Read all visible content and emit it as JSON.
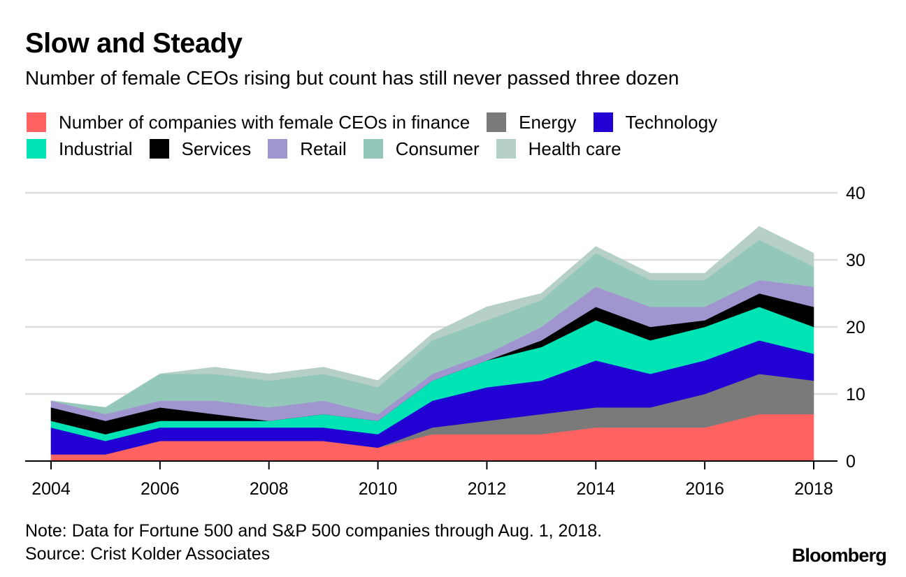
{
  "header": {
    "title": "Slow and Steady",
    "subtitle": "Number of female CEOs rising but count has still never passed three dozen"
  },
  "legend": {
    "row1": [
      {
        "label": "Number of companies with female CEOs in finance",
        "color": "#ff6361"
      },
      {
        "label": "Energy",
        "color": "#7a7a7a"
      },
      {
        "label": "Technology",
        "color": "#2200d4"
      }
    ],
    "row2": [
      {
        "label": "Industrial",
        "color": "#00e3b4"
      },
      {
        "label": "Services",
        "color": "#000000"
      },
      {
        "label": "Retail",
        "color": "#a195cf"
      },
      {
        "label": "Consumer",
        "color": "#93c7ba"
      },
      {
        "label": "Health care",
        "color": "#b6d0c7"
      }
    ]
  },
  "footer": {
    "note": "Note: Data for Fortune 500 and S&P 500 companies through Aug. 1, 2018.",
    "source": "Source: Crist Kolder Associates",
    "brand": "Bloomberg"
  },
  "chart_data": {
    "type": "area",
    "stacked": true,
    "title": "Slow and Steady",
    "subtitle": "Number of female CEOs rising but count has still never passed three dozen",
    "xlabel": "",
    "ylabel": "",
    "x": [
      2004,
      2005,
      2006,
      2007,
      2008,
      2009,
      2010,
      2011,
      2012,
      2013,
      2014,
      2015,
      2016,
      2017,
      2018
    ],
    "x_tick_labels": [
      "2004",
      "2006",
      "2008",
      "2010",
      "2012",
      "2014",
      "2016",
      "2018"
    ],
    "x_ticks": [
      2004,
      2006,
      2008,
      2010,
      2012,
      2014,
      2016,
      2018
    ],
    "y_ticks": [
      0,
      10,
      20,
      30,
      40
    ],
    "y_tick_labels": [
      "0",
      "10",
      "20",
      "30",
      "40"
    ],
    "ylim": [
      0,
      40
    ],
    "xlim": [
      2004,
      2018
    ],
    "y_axis_side": "right",
    "grid": true,
    "legend_position": "top",
    "series": [
      {
        "name": "Number of companies with female CEOs in finance",
        "color": "#ff6361",
        "values": [
          1,
          1,
          3,
          3,
          3,
          3,
          2,
          4,
          4,
          4,
          5,
          5,
          5,
          7,
          7
        ]
      },
      {
        "name": "Energy",
        "color": "#7a7a7a",
        "values": [
          0,
          0,
          0,
          0,
          0,
          0,
          0,
          1,
          2,
          3,
          3,
          3,
          5,
          6,
          5
        ]
      },
      {
        "name": "Technology",
        "color": "#2200d4",
        "values": [
          4,
          2,
          2,
          2,
          2,
          2,
          2,
          4,
          5,
          5,
          7,
          5,
          5,
          5,
          4
        ]
      },
      {
        "name": "Industrial",
        "color": "#00e3b4",
        "values": [
          1,
          1,
          1,
          1,
          1,
          2,
          2,
          3,
          4,
          5,
          6,
          5,
          5,
          5,
          4
        ]
      },
      {
        "name": "Services",
        "color": "#000000",
        "values": [
          2,
          2,
          2,
          1,
          0,
          0,
          0,
          0,
          0,
          1,
          2,
          2,
          1,
          2,
          3
        ]
      },
      {
        "name": "Retail",
        "color": "#a195cf",
        "values": [
          1,
          1,
          1,
          2,
          2,
          2,
          1,
          1,
          1,
          2,
          3,
          3,
          2,
          2,
          3
        ]
      },
      {
        "name": "Consumer",
        "color": "#93c7ba",
        "values": [
          0,
          1,
          4,
          4,
          4,
          4,
          4,
          5,
          5,
          4,
          5,
          4,
          4,
          6,
          3
        ]
      },
      {
        "name": "Health care",
        "color": "#b6d0c7",
        "values": [
          0,
          0,
          0,
          1,
          1,
          1,
          1,
          1,
          2,
          1,
          1,
          1,
          1,
          2,
          2
        ]
      }
    ]
  }
}
